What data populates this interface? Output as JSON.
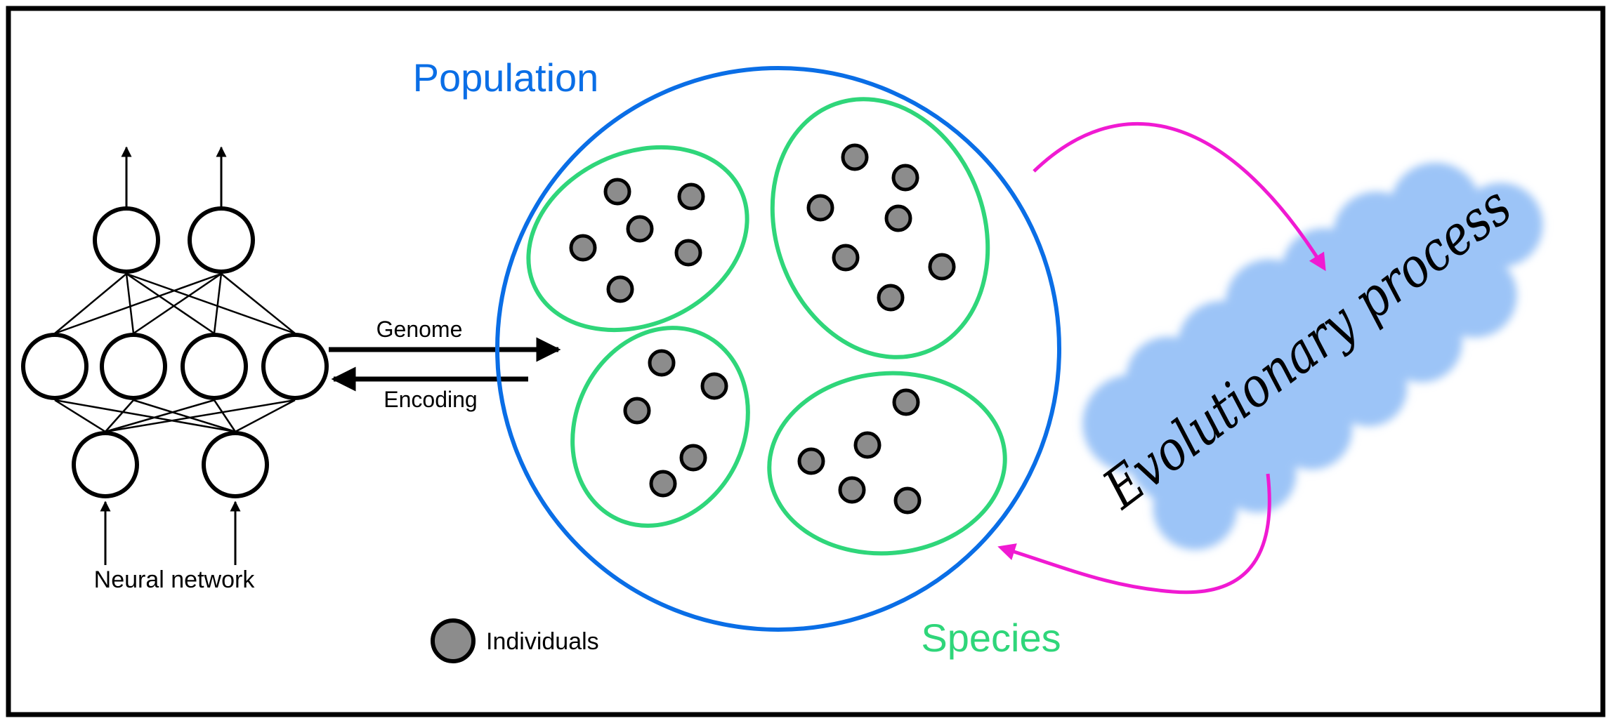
{
  "labels": {
    "population": "Population",
    "species": "Species",
    "genome": "Genome",
    "encoding": "Encoding",
    "neural_network": "Neural network",
    "individuals": "Individuals",
    "evolutionary_process": "Evolutionary process"
  },
  "colors": {
    "population": "#0a6ee6",
    "species": "#2fd67a",
    "process_cloud": "#9cc4f7",
    "process_arrow": "#f01ad2",
    "individual_fill": "#8c8c8c",
    "stroke": "#000000"
  }
}
